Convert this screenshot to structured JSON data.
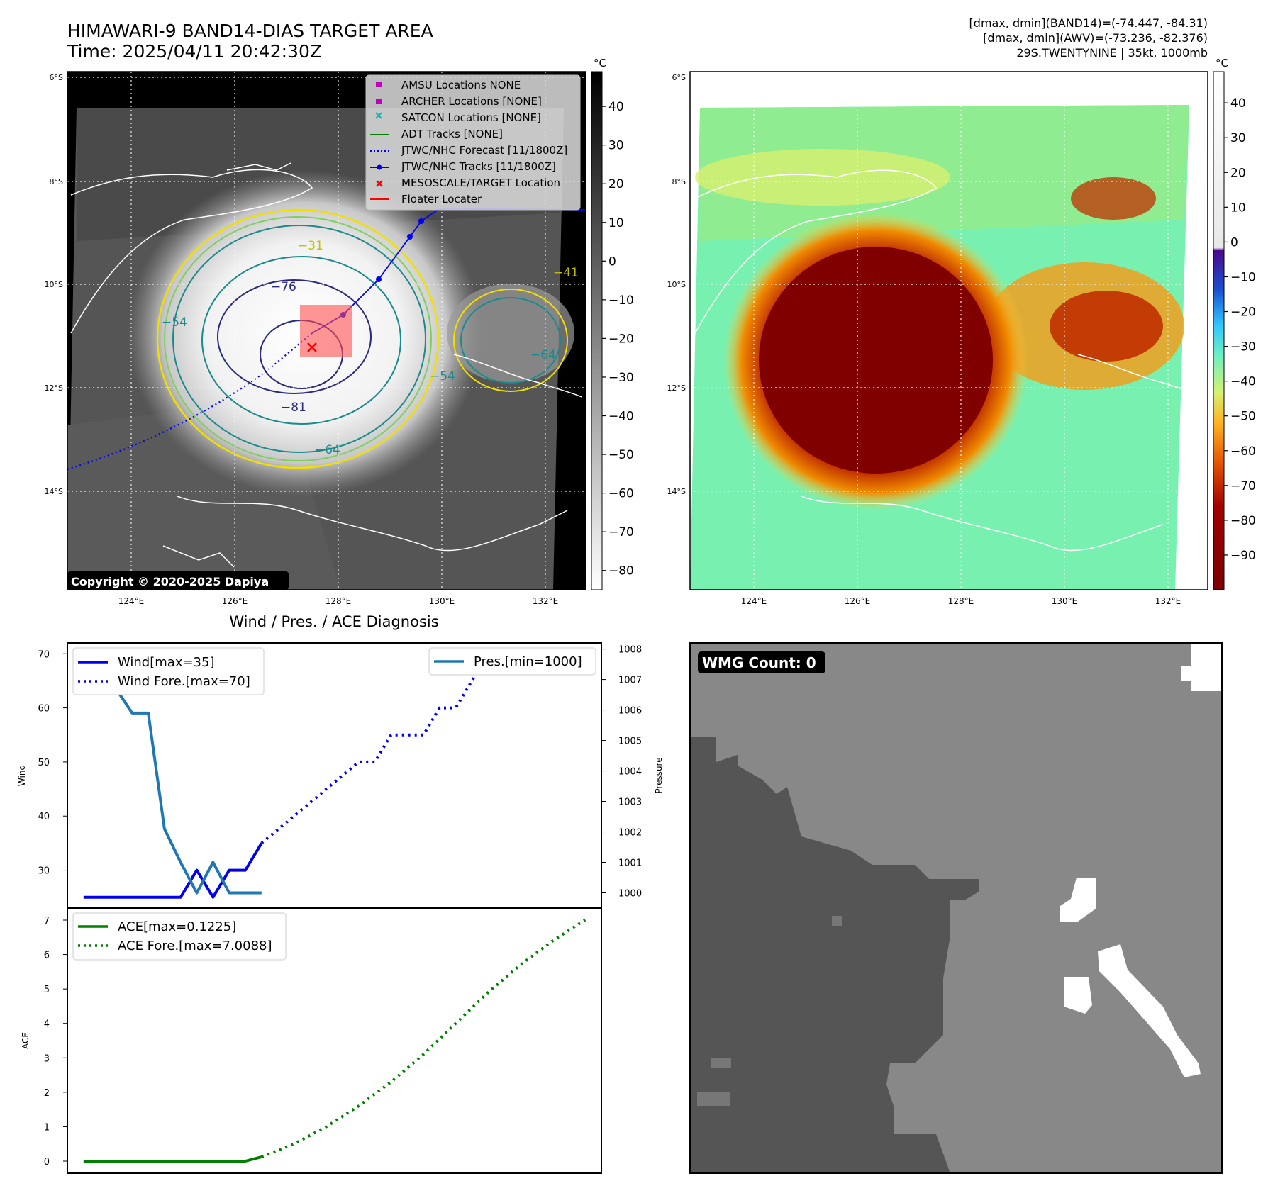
{
  "header": {
    "title_line1": "HIMAWARI-9 BAND14-DIAS TARGET AREA",
    "title_line2": "Time: 2025/04/11 20:42:30Z",
    "info_line1": "[dmax, dmin](BAND14)=(-74.447, -84.31)",
    "info_line2": "[dmax, dmin](AWV)=(-73.236, -82.376)",
    "info_line3": "29S.TWENTYNINE | 35kt, 1000mb"
  },
  "maps": {
    "lat_ticks": [
      "6°S",
      "8°S",
      "10°S",
      "12°S",
      "14°S"
    ],
    "lon_ticks": [
      "124°E",
      "126°E",
      "128°E",
      "130°E",
      "132°E"
    ],
    "lat_range": [
      -16,
      -6
    ],
    "lon_range": [
      123,
      133
    ],
    "band14_colorbar": {
      "unit": "°C",
      "ticks": [
        "40",
        "30",
        "20",
        "10",
        "0",
        "−10",
        "−20",
        "−30",
        "−40",
        "−50",
        "−60",
        "−70",
        "−80"
      ],
      "range": [
        -85,
        49
      ]
    },
    "awv_colorbar": {
      "unit": "°C",
      "ticks": [
        "40",
        "30",
        "20",
        "10",
        "0",
        "−10",
        "−20",
        "−30",
        "−40",
        "−50",
        "−60",
        "−70",
        "−80",
        "−90"
      ],
      "range": [
        -100,
        49
      ]
    },
    "contour_labels": [
      "−76",
      "−81",
      "−64",
      "−54",
      "−31",
      "−64",
      "−54",
      "−41"
    ],
    "legend": [
      "AMSU Locations NONE",
      "ARCHER Locations [NONE]",
      "SATCON Locations [NONE]",
      "ADT Tracks [NONE]",
      "JTWC/NHC Forecast [11/1800Z]",
      "JTWC/NHC Tracks [11/1800Z]",
      "MESOSCALE/TARGET Location",
      "Floater Locater"
    ],
    "copyright": "Copyright © 2020-2025 Dapiya",
    "colors": {
      "track": "#0000ee",
      "target": "#ff0000",
      "contour_yellow": "#f0e000",
      "contour_teal": "#1a8a8a",
      "contour_navy": "#2a2a80"
    }
  },
  "diagnosis": {
    "title": "Wind / Pres. / ACE Diagnosis",
    "wind_legend": [
      "Wind[max=35]",
      "Wind Fore.[max=70]"
    ],
    "pres_legend": [
      "Pres.[min=1000]"
    ],
    "ace_legend": [
      "ACE[max=0.1225]",
      "ACE Fore.[max=7.0088]"
    ],
    "wind_ylabel": "Wind",
    "pres_ylabel": "Pressure",
    "ace_ylabel": "ACE"
  },
  "chart_data": [
    {
      "type": "line",
      "title": "Wind / Pres. / ACE Diagnosis",
      "ylabel": "Wind",
      "ylim": [
        23,
        72
      ],
      "y2label": "Pressure",
      "y2lim": [
        999.5,
        1008.2
      ],
      "wind_ticks": [
        30,
        40,
        50,
        60,
        70
      ],
      "pres_ticks": [
        1000,
        1001,
        1002,
        1003,
        1004,
        1005,
        1006,
        1007,
        1008
      ],
      "series": [
        {
          "name": "Wind[max=35]",
          "color": "#0000ee",
          "style": "solid",
          "axis": "left",
          "x": [
            0,
            1,
            2,
            3,
            4,
            5,
            6,
            7,
            8,
            9,
            10,
            11
          ],
          "values": [
            25,
            25,
            25,
            25,
            25,
            25,
            25,
            30,
            25,
            30,
            30,
            35
          ]
        },
        {
          "name": "Wind Fore.[max=70]",
          "color": "#0000ee",
          "style": "dotted",
          "axis": "left",
          "x": [
            11,
            13,
            15,
            17,
            18,
            19,
            21,
            22,
            23,
            25,
            26,
            27,
            28,
            29,
            31
          ],
          "values": [
            35,
            40,
            45,
            50,
            50,
            55,
            55,
            60,
            60,
            70,
            70,
            70,
            70,
            70,
            67
          ]
        },
        {
          "name": "Pres.[min=1000]",
          "color": "#1f77b4",
          "style": "solid",
          "axis": "right",
          "x": [
            0,
            1,
            2,
            3,
            4,
            5,
            6,
            7,
            8,
            9,
            10,
            11
          ],
          "values": [
            1008,
            1006.7,
            1006.7,
            1005.9,
            1005.9,
            1002.1,
            1001,
            1000,
            1001,
            1000,
            1000,
            1000
          ]
        }
      ]
    },
    {
      "type": "line",
      "ylabel": "ACE",
      "ylim": [
        -0.35,
        7.35
      ],
      "ace_ticks": [
        0,
        1,
        2,
        3,
        4,
        5,
        6,
        7
      ],
      "series": [
        {
          "name": "ACE[max=0.1225]",
          "color": "#007f00",
          "style": "solid",
          "x": [
            0,
            5,
            10,
            11
          ],
          "values": [
            0,
            0,
            0,
            0.1225
          ]
        },
        {
          "name": "ACE Fore.[max=7.0088]",
          "color": "#007f00",
          "style": "dotted",
          "x": [
            11,
            13,
            15,
            17,
            19,
            21,
            23,
            25,
            27,
            29,
            31
          ],
          "values": [
            0.1225,
            0.5,
            1.0,
            1.6,
            2.3,
            3.1,
            4.0,
            4.9,
            5.7,
            6.4,
            7.0088
          ]
        }
      ]
    }
  ],
  "wmg": {
    "label": "WMG Count: 0"
  }
}
